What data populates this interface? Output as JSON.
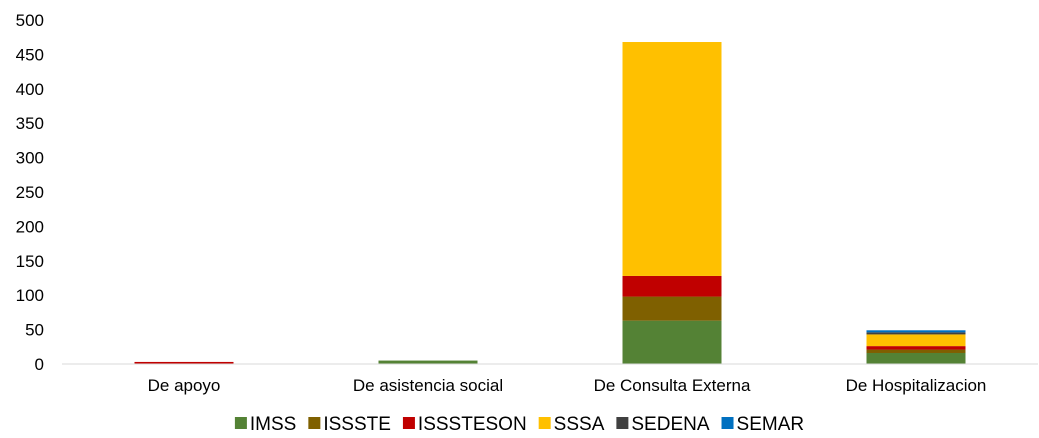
{
  "chart_data": {
    "type": "bar",
    "stacked": true,
    "categories": [
      "De apoyo",
      "De asistencia social",
      "De Consulta Externa",
      "De Hospitalizacion"
    ],
    "series": [
      {
        "name": "IMSS",
        "color": "#548235",
        "values": [
          0,
          5,
          63,
          16
        ]
      },
      {
        "name": "ISSSTE",
        "color": "#7F6000",
        "values": [
          0,
          0,
          35,
          5
        ]
      },
      {
        "name": "ISSSTESON",
        "color": "#C00000",
        "values": [
          3,
          0,
          30,
          5
        ]
      },
      {
        "name": "SSSA",
        "color": "#FFC000",
        "values": [
          0,
          0,
          340,
          17
        ]
      },
      {
        "name": "SEDENA",
        "color": "#404040",
        "values": [
          0,
          0,
          0,
          3
        ]
      },
      {
        "name": "SEMAR",
        "color": "#0070C0",
        "values": [
          0,
          0,
          0,
          3
        ]
      }
    ],
    "title": "",
    "xlabel": "",
    "ylabel": "",
    "ylim": [
      0,
      500
    ],
    "yticks": [
      "0",
      "50",
      "100",
      "150",
      "200",
      "250",
      "300",
      "350",
      "400",
      "450",
      "500"
    ],
    "grid": false,
    "legend_position": "bottom"
  }
}
